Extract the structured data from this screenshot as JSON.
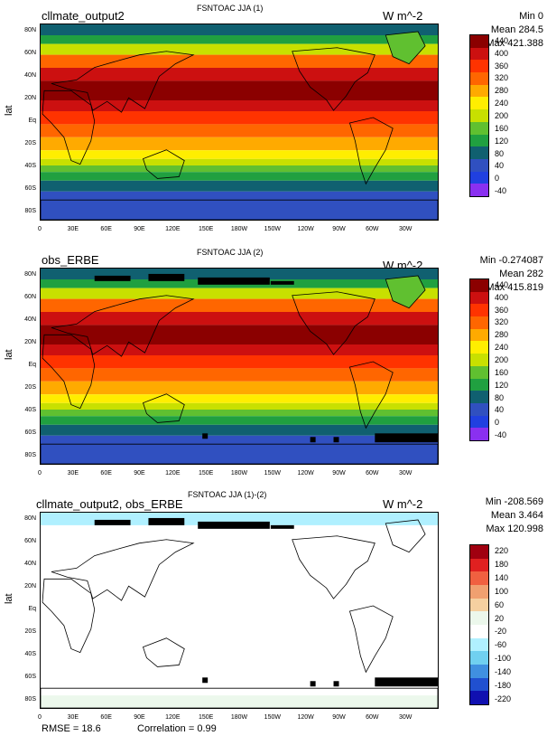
{
  "panels": [
    {
      "case": "cllmate_output2",
      "title": "FSNTOAC JJA (1)",
      "units": "W m^-2",
      "min": "Min 0",
      "mean": "Mean 284.5",
      "max": "Max 421.388",
      "lat_label": "lat",
      "levels": [
        "440",
        "400",
        "360",
        "320",
        "280",
        "240",
        "200",
        "160",
        "120",
        "80",
        "40",
        "0",
        "-40"
      ],
      "colors": [
        "#8b0000",
        "#cc1010",
        "#ff3300",
        "#ff6600",
        "#ffaa00",
        "#ffee00",
        "#c8e000",
        "#60c030",
        "#20a040",
        "#106070",
        "#3050c0",
        "#2040e0",
        "#8a30f0"
      ]
    },
    {
      "case": "obs_ERBE",
      "title": "FSNTOAC JJA (2)",
      "units": "W m^-2",
      "min": "Min -0.274087",
      "mean": "Mean 282",
      "max": "Max 415.819",
      "lat_label": "lat",
      "levels": [
        "440",
        "400",
        "360",
        "320",
        "280",
        "240",
        "200",
        "160",
        "120",
        "80",
        "40",
        "0",
        "-40"
      ],
      "colors": [
        "#8b0000",
        "#cc1010",
        "#ff3300",
        "#ff6600",
        "#ffaa00",
        "#ffee00",
        "#c8e000",
        "#60c030",
        "#20a040",
        "#106070",
        "#3050c0",
        "#2040e0",
        "#8a30f0"
      ]
    },
    {
      "case": "cllmate_output2, obs_ERBE",
      "title": "FSNTOAC JJA (1)-(2)",
      "units": "W m^-2",
      "min": "Min -208.569",
      "mean": "Mean 3.464",
      "max": "Max 120.998",
      "lat_label": "lat",
      "levels": [
        "220",
        "180",
        "140",
        "100",
        "60",
        "20",
        "-20",
        "-60",
        "-100",
        "-140",
        "-180",
        "-220"
      ],
      "colors": [
        "#a00010",
        "#e02020",
        "#f06040",
        "#f0a070",
        "#f5d0a0",
        "#ecf8ec",
        "#ffffff",
        "#b0f0ff",
        "#70d0f0",
        "#4090e0",
        "#2050d0",
        "#1010b0"
      ]
    }
  ],
  "lat_ticks": [
    "80N",
    "60N",
    "40N",
    "20N",
    "Eq",
    "20S",
    "40S",
    "60S",
    "80S"
  ],
  "lon_ticks": [
    "0",
    "30E",
    "60E",
    "90E",
    "120E",
    "150E",
    "180W",
    "150W",
    "120W",
    "90W",
    "60W",
    "30W"
  ],
  "footer": {
    "rmse": "RMSE = 18.6",
    "correlation": "Correlation = 0.99"
  }
}
